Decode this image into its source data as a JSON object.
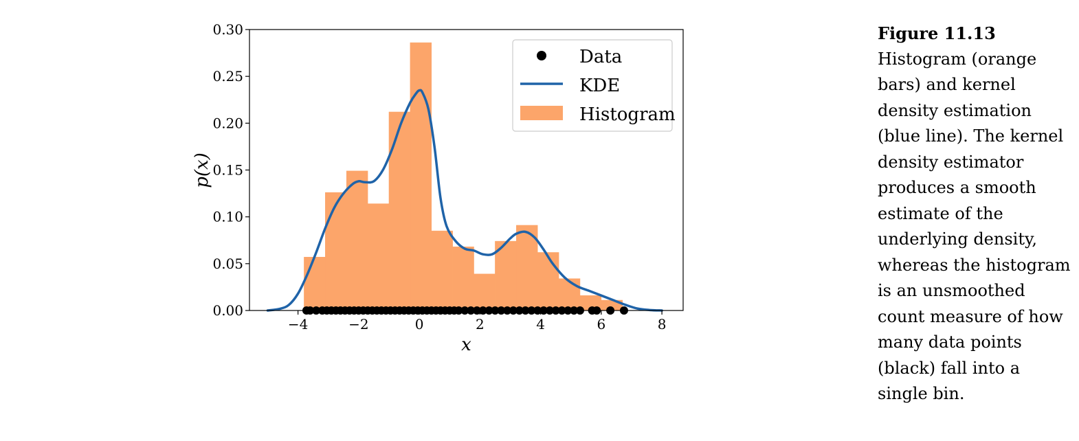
{
  "caption": {
    "figure_label": "Figure 11.13",
    "text": "Histogram (orange bars) and kernel density estimation (blue line). The kernel density estimator produces a smooth estimate of the underlying density, whereas the histogram is an unsmoothed count measure of how many data points (black) fall into a single bin."
  },
  "colors": {
    "histogram": "#fca56a",
    "kde": "#1f63a8",
    "data": "#000000"
  },
  "chart_data": {
    "type": "bar",
    "title": "",
    "xlabel": "x",
    "ylabel": "p(x)",
    "xlim": [
      -5.6,
      8.7
    ],
    "ylim": [
      0.0,
      0.3
    ],
    "xticks": [
      -4,
      -2,
      0,
      2,
      4,
      6,
      8
    ],
    "xtick_labels": [
      "−4",
      "−2",
      "0",
      "2",
      "4",
      "6",
      "8"
    ],
    "yticks": [
      0.0,
      0.05,
      0.1,
      0.15,
      0.2,
      0.25,
      0.3
    ],
    "ytick_labels": [
      "0.00",
      "0.05",
      "0.10",
      "0.15",
      "0.20",
      "0.25",
      "0.30"
    ],
    "grid": false,
    "legend_position": "top-right",
    "legend": [
      {
        "key": "data",
        "label": "Data"
      },
      {
        "key": "kde",
        "label": "KDE"
      },
      {
        "key": "histogram",
        "label": "Histogram"
      }
    ],
    "histogram": {
      "bin_edges": [
        -3.8,
        -3.1,
        -2.4,
        -1.7,
        -1.0,
        -0.3,
        0.4,
        1.1,
        1.8,
        2.5,
        3.2,
        3.9,
        4.6,
        5.3,
        6.0,
        6.7
      ],
      "values": [
        0.057,
        0.126,
        0.149,
        0.114,
        0.212,
        0.286,
        0.085,
        0.068,
        0.039,
        0.074,
        0.091,
        0.062,
        0.034,
        0.016,
        0.011
      ]
    },
    "kde": {
      "x": [
        -5.0,
        -4.6,
        -4.3,
        -4.0,
        -3.7,
        -3.4,
        -3.1,
        -2.8,
        -2.5,
        -2.2,
        -2.0,
        -1.8,
        -1.5,
        -1.2,
        -0.9,
        -0.6,
        -0.3,
        -0.1,
        0.0,
        0.1,
        0.3,
        0.5,
        0.7,
        0.9,
        1.2,
        1.5,
        1.8,
        2.1,
        2.4,
        2.7,
        3.0,
        3.2,
        3.5,
        3.8,
        4.1,
        4.4,
        4.8,
        5.2,
        5.6,
        6.0,
        6.4,
        6.8,
        7.2,
        7.6,
        8.0
      ],
      "y": [
        0.0,
        0.0018,
        0.006,
        0.018,
        0.038,
        0.062,
        0.088,
        0.11,
        0.125,
        0.135,
        0.138,
        0.137,
        0.138,
        0.15,
        0.172,
        0.2,
        0.222,
        0.232,
        0.235,
        0.233,
        0.215,
        0.175,
        0.12,
        0.09,
        0.074,
        0.066,
        0.064,
        0.06,
        0.06,
        0.067,
        0.077,
        0.082,
        0.084,
        0.078,
        0.065,
        0.05,
        0.035,
        0.026,
        0.021,
        0.016,
        0.011,
        0.006,
        0.002,
        0.0005,
        0.0
      ],
      "stroke_width": 3.5
    },
    "data_points": [
      -3.72,
      -3.6,
      -3.4,
      -3.2,
      -3.05,
      -2.9,
      -2.75,
      -2.6,
      -2.45,
      -2.3,
      -2.15,
      -2.0,
      -1.85,
      -1.7,
      -1.55,
      -1.4,
      -1.25,
      -1.1,
      -0.95,
      -0.8,
      -0.65,
      -0.5,
      -0.35,
      -0.2,
      -0.05,
      0.1,
      0.25,
      0.4,
      0.55,
      0.7,
      0.85,
      1.0,
      1.15,
      1.3,
      1.5,
      1.7,
      1.9,
      2.1,
      2.3,
      2.5,
      2.7,
      2.9,
      3.1,
      3.3,
      3.5,
      3.7,
      3.9,
      4.1,
      4.3,
      4.5,
      4.7,
      4.9,
      5.1,
      5.3,
      5.7,
      5.85,
      6.3,
      6.75
    ]
  }
}
